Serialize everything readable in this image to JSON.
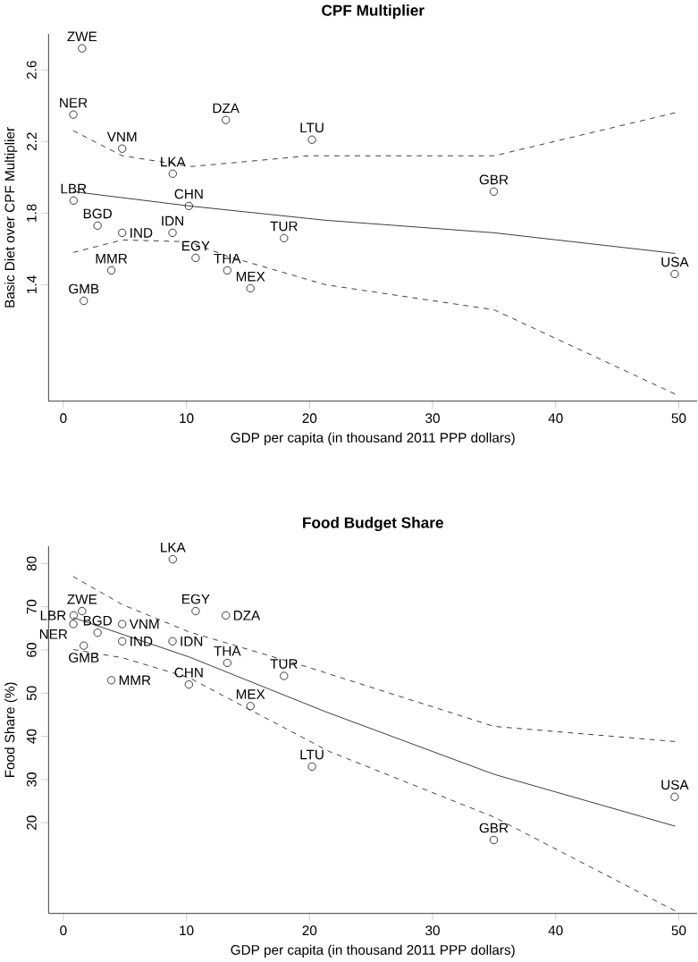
{
  "chart_data": [
    {
      "type": "scatter",
      "title": "CPF Multiplier",
      "xlabel": "GDP per capita (in thousand 2011 PPP dollars)",
      "ylabel": "Basic Diet over CPF Multiplier",
      "xlim": [
        -1.2,
        51.5
      ],
      "ylim": [
        0.75,
        2.8
      ],
      "xticks": [
        0,
        10,
        20,
        30,
        40,
        50
      ],
      "yticks": [
        1.4,
        1.8,
        2.2,
        2.6
      ],
      "series": [
        {
          "marker": "circle",
          "color": "#000000",
          "x": [
            1.52,
            0.81,
            4.78,
            8.89,
            13.2,
            20.2,
            0.83,
            10.2,
            2.78,
            4.78,
            8.87,
            17.93,
            10.75,
            13.32,
            3.9,
            15.2,
            1.66,
            34.97,
            49.67
          ],
          "values": [
            2.72,
            2.35,
            2.16,
            2.02,
            2.32,
            2.21,
            1.87,
            1.84,
            1.73,
            1.69,
            1.69,
            1.66,
            1.55,
            1.48,
            1.48,
            1.38,
            1.31,
            1.92,
            1.46
          ]
        },
        {
          "type": "line",
          "marker": "none",
          "color": "#000000",
          "line_style": "solid",
          "x": [
            0.8,
            10.2,
            21.3,
            35,
            49.7
          ],
          "values": [
            1.92,
            1.84,
            1.76,
            1.69,
            1.575
          ]
        },
        {
          "type": "line",
          "marker": "none",
          "color": "#000000",
          "line_style": "dashed",
          "x": [
            0.8,
            4.8,
            10.4,
            20,
            35,
            49.7
          ],
          "values": [
            2.26,
            2.12,
            2.06,
            2.12,
            2.12,
            2.36
          ]
        },
        {
          "type": "line",
          "marker": "none",
          "color": "#000000",
          "line_style": "dashed",
          "x": [
            0.8,
            4.8,
            10.2,
            13.3,
            21.3,
            35,
            49.7
          ],
          "values": [
            1.58,
            1.65,
            1.64,
            1.56,
            1.4,
            1.26,
            0.79
          ]
        }
      ],
      "annotations": [
        {
          "text": "ZWE",
          "x": 1.52,
          "y": 2.72
        },
        {
          "text": "NER",
          "x": 0.81,
          "y": 2.35
        },
        {
          "text": "VNM",
          "x": 4.78,
          "y": 2.16
        },
        {
          "text": "LKA",
          "x": 8.89,
          "y": 2.02
        },
        {
          "text": "DZA",
          "x": 13.2,
          "y": 2.32
        },
        {
          "text": "LTU",
          "x": 20.2,
          "y": 2.21
        },
        {
          "text": "LBR",
          "x": 0.83,
          "y": 1.87
        },
        {
          "text": "CHN",
          "x": 10.2,
          "y": 1.84
        },
        {
          "text": "BGD",
          "x": 2.78,
          "y": 1.73
        },
        {
          "text": "IND",
          "x": 4.78,
          "y": 1.69
        },
        {
          "text": "IDN",
          "x": 8.87,
          "y": 1.69
        },
        {
          "text": "TUR",
          "x": 17.93,
          "y": 1.66
        },
        {
          "text": "EGY",
          "x": 10.75,
          "y": 1.55
        },
        {
          "text": "THA",
          "x": 13.32,
          "y": 1.48
        },
        {
          "text": "MMR",
          "x": 3.9,
          "y": 1.48
        },
        {
          "text": "MEX",
          "x": 15.2,
          "y": 1.38
        },
        {
          "text": "GMB",
          "x": 1.66,
          "y": 1.31
        },
        {
          "text": "GBR",
          "x": 34.97,
          "y": 1.92
        },
        {
          "text": "USA",
          "x": 49.67,
          "y": 1.46
        }
      ]
    },
    {
      "type": "scatter",
      "title": "Food Budget Share",
      "xlabel": "GDP per capita (in thousand 2011 PPP dollars)",
      "ylabel": "Food Share (%)",
      "xlim": [
        -1.2,
        51.5
      ],
      "ylim": [
        -1,
        84
      ],
      "xticks": [
        0,
        10,
        20,
        30,
        40,
        50
      ],
      "yticks": [
        20,
        30,
        40,
        50,
        60,
        70,
        80
      ],
      "series": [
        {
          "marker": "circle",
          "color": "#000000",
          "x": [
            8.89,
            10.75,
            13.2,
            1.52,
            0.83,
            0.81,
            2.78,
            1.66,
            4.78,
            4.78,
            8.87,
            13.32,
            17.93,
            3.9,
            10.2,
            15.2,
            20.2,
            34.97,
            49.67
          ],
          "values": [
            81,
            69,
            68,
            69,
            68,
            66,
            64,
            61,
            66,
            62,
            62,
            57,
            54,
            53,
            52,
            47,
            33,
            16,
            26
          ]
        },
        {
          "type": "line",
          "marker": "none",
          "color": "#000000",
          "line_style": "solid",
          "x": [
            0.8,
            10.2,
            21.3,
            35,
            49.7
          ],
          "values": [
            67.5,
            58.4,
            45.7,
            31.2,
            19.2
          ]
        },
        {
          "type": "line",
          "marker": "none",
          "color": "#000000",
          "line_style": "dashed",
          "x": [
            0.8,
            4.8,
            10.2,
            20,
            35,
            49.7
          ],
          "values": [
            77,
            70.5,
            64.2,
            55.9,
            42.3,
            38.8
          ]
        },
        {
          "type": "line",
          "marker": "none",
          "color": "#000000",
          "line_style": "dashed",
          "x": [
            0.8,
            4.8,
            10.2,
            15.2,
            21.6,
            35,
            49.7
          ],
          "values": [
            60.1,
            58.2,
            53.6,
            46.1,
            36.5,
            21.3,
            -0.4
          ]
        }
      ],
      "annotations": [
        {
          "text": "LKA",
          "x": 8.89,
          "y": 81
        },
        {
          "text": "EGY",
          "x": 10.75,
          "y": 69
        },
        {
          "text": "DZA",
          "x": 13.2,
          "y": 68
        },
        {
          "text": "ZWE",
          "x": 1.52,
          "y": 69
        },
        {
          "text": "LBR",
          "x": 0.83,
          "y": 68
        },
        {
          "text": "NER",
          "x": 0.81,
          "y": 66
        },
        {
          "text": "BGD",
          "x": 2.78,
          "y": 64
        },
        {
          "text": "GMB",
          "x": 1.66,
          "y": 61
        },
        {
          "text": "VNM",
          "x": 4.78,
          "y": 66
        },
        {
          "text": "IND",
          "x": 4.78,
          "y": 62
        },
        {
          "text": "IDN",
          "x": 8.87,
          "y": 62
        },
        {
          "text": "THA",
          "x": 13.32,
          "y": 57
        },
        {
          "text": "TUR",
          "x": 17.93,
          "y": 54
        },
        {
          "text": "MMR",
          "x": 3.9,
          "y": 53
        },
        {
          "text": "CHN",
          "x": 10.2,
          "y": 52
        },
        {
          "text": "MEX",
          "x": 15.2,
          "y": 47
        },
        {
          "text": "LTU",
          "x": 20.2,
          "y": 33
        },
        {
          "text": "GBR",
          "x": 34.97,
          "y": 16
        },
        {
          "text": "USA",
          "x": 49.67,
          "y": 26
        }
      ]
    }
  ]
}
